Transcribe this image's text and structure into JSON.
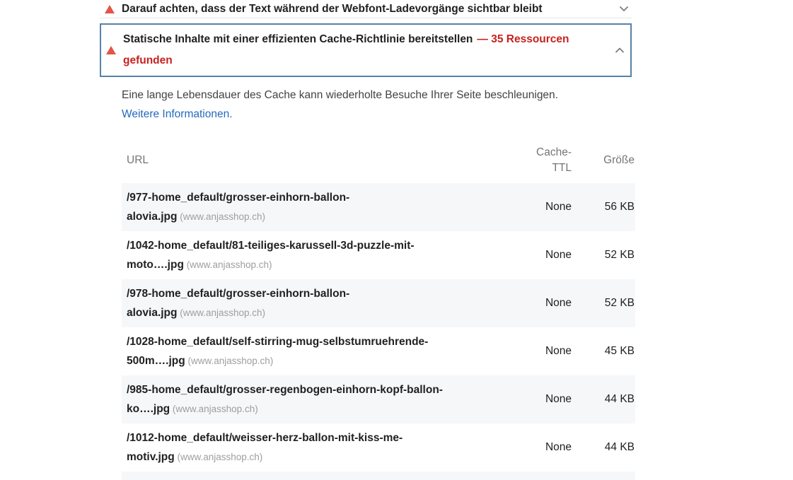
{
  "panel": {
    "collapsed_audit": {
      "title": "Darauf achten, dass der Text während der Webfont-Ladevorgänge sichtbar bleibt"
    },
    "expanded_audit": {
      "title": "Statische Inhalte mit einer effizienten Cache-Richtlinie bereitstellen",
      "result": "— 35 Ressourcen gefunden"
    },
    "description": {
      "text": "Eine lange Lebensdauer des Cache kann wiederholte Besuche Ihrer Seite beschleunigen.",
      "link": "Weitere Informationen."
    },
    "table": {
      "headers": {
        "url": "URL",
        "cache_ttl": "Cache-TTL",
        "size": "Größe"
      },
      "rows": [
        {
          "path": "/977-home_default/grosser-einhorn-ballon-alovia.jpg",
          "host": "(www.anjasshop.ch)",
          "ttl": "None",
          "size": "56 KB"
        },
        {
          "path": "/1042-home_default/81-teiliges-karussell-3d-puzzle-mit-moto….jpg",
          "host": "(www.anjasshop.ch)",
          "ttl": "None",
          "size": "52 KB"
        },
        {
          "path": "/978-home_default/grosser-einhorn-ballon-alovia.jpg",
          "host": "(www.anjasshop.ch)",
          "ttl": "None",
          "size": "52 KB"
        },
        {
          "path": "/1028-home_default/self-stirring-mug-selbstumruehrende-500m….jpg",
          "host": "(www.anjasshop.ch)",
          "ttl": "None",
          "size": "45 KB"
        },
        {
          "path": "/985-home_default/grosser-regenbogen-einhorn-kopf-ballon-ko….jpg",
          "host": "(www.anjasshop.ch)",
          "ttl": "None",
          "size": "44 KB"
        },
        {
          "path": "/1012-home_default/weisser-herz-ballon-mit-kiss-me-motiv.jpg",
          "host": "(www.anjasshop.ch)",
          "ttl": "None",
          "size": "44 KB"
        }
      ]
    },
    "colors": {
      "fail_icon": "#e25548",
      "result_red": "#c7221f",
      "focus_border": "#5582ab",
      "link_blue": "#2569bd",
      "zebra_row": "#f6f7f8"
    }
  }
}
